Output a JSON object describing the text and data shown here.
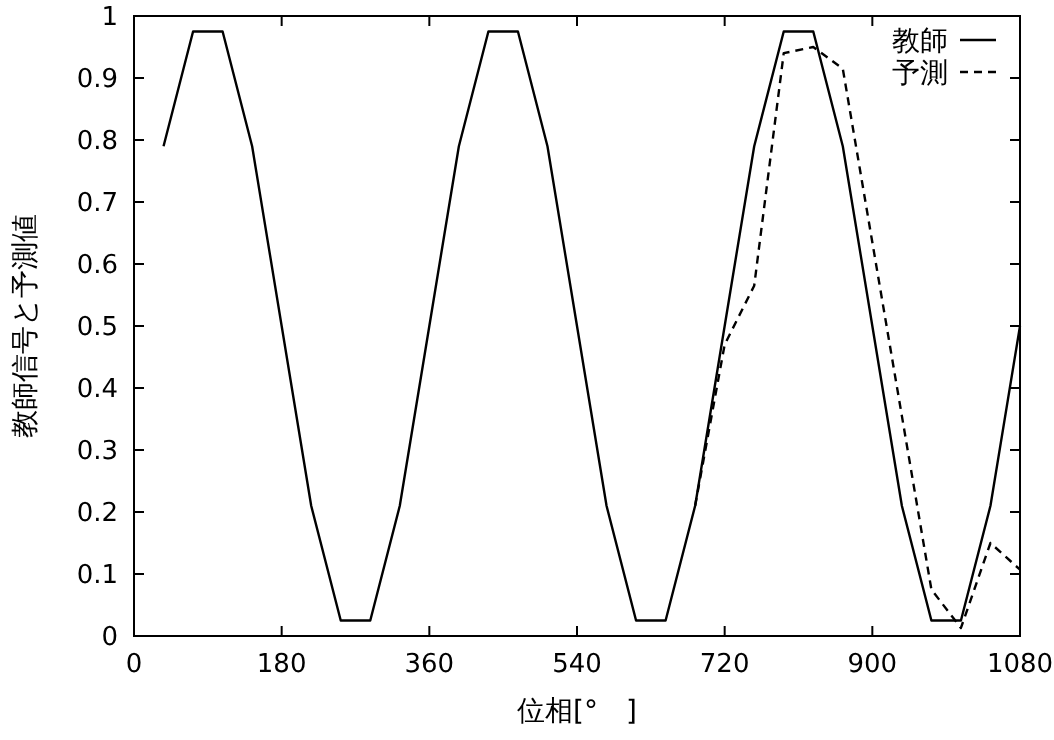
{
  "chart_data": {
    "type": "line",
    "xlabel": "位相[°　]",
    "ylabel": "教師信号と予測値",
    "xlim": [
      0,
      1080
    ],
    "xticks": [
      0,
      180,
      360,
      540,
      720,
      900,
      1080
    ],
    "ylim": [
      0,
      1
    ],
    "yticks": [
      0,
      0.1,
      0.2,
      0.3,
      0.4,
      0.5,
      0.6,
      0.7,
      0.8,
      0.9,
      1
    ],
    "legend": "top right",
    "grid": false,
    "series": [
      {
        "name": "教師",
        "color": "#000000",
        "line_style": "solid",
        "x": [
          36,
          72,
          108,
          144,
          180,
          216,
          252,
          288,
          324,
          360,
          396,
          432,
          468,
          504,
          540,
          576,
          612,
          648,
          684,
          720,
          756,
          792,
          828,
          864,
          900,
          936,
          972,
          1008,
          1044,
          1080
        ],
        "values": [
          0.79,
          0.975,
          0.975,
          0.79,
          0.5,
          0.21,
          0.025,
          0.025,
          0.21,
          0.5,
          0.79,
          0.975,
          0.975,
          0.79,
          0.5,
          0.21,
          0.025,
          0.025,
          0.21,
          0.5,
          0.79,
          0.975,
          0.975,
          0.79,
          0.5,
          0.21,
          0.025,
          0.025,
          0.21,
          0.5
        ]
      },
      {
        "name": "予測",
        "color": "#000000",
        "line_style": "dashed",
        "x": [
          684,
          720,
          756,
          792,
          828,
          864,
          900,
          936,
          972,
          1008,
          1044,
          1080
        ],
        "values": [
          0.21,
          0.47,
          0.565,
          0.94,
          0.95,
          0.915,
          0.635,
          0.355,
          0.075,
          0.013,
          0.15,
          0.107
        ]
      }
    ]
  }
}
